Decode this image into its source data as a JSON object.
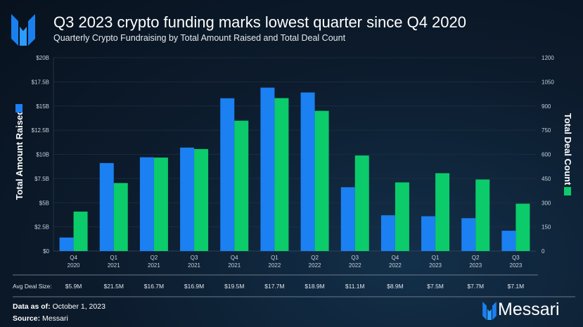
{
  "header": {
    "title": "Q3 2023 crypto funding marks lowest quarter since Q4 2020",
    "subtitle": "Quarterly Crypto Fundraising by Total Amount Raised and Total Deal Count"
  },
  "chart_data": {
    "type": "bar",
    "title": "Q3 2023 crypto funding marks lowest quarter since Q4 2020",
    "subtitle": "Quarterly Crypto Fundraising by Total Amount Raised and Total Deal Count",
    "categories": [
      [
        "Q4",
        "2020"
      ],
      [
        "Q1",
        "2021"
      ],
      [
        "Q2",
        "2021"
      ],
      [
        "Q3",
        "2021"
      ],
      [
        "Q4",
        "2021"
      ],
      [
        "Q1",
        "2022"
      ],
      [
        "Q2",
        "2022"
      ],
      [
        "Q3",
        "2022"
      ],
      [
        "Q4",
        "2022"
      ],
      [
        "Q1",
        "2023"
      ],
      [
        "Q2",
        "2023"
      ],
      [
        "Q3",
        "2023"
      ]
    ],
    "series": [
      {
        "name": "Total Amount Raised",
        "axis": "left",
        "unit": "USD billions",
        "color": "#1b80f2",
        "values": [
          1.4,
          9.1,
          9.7,
          10.7,
          15.8,
          16.9,
          16.4,
          6.6,
          3.7,
          3.6,
          3.4,
          2.1
        ]
      },
      {
        "name": "Total Deal Count",
        "axis": "right",
        "color": "#0bcb6b",
        "values": [
          245,
          422,
          580,
          633,
          809,
          949,
          870,
          593,
          426,
          483,
          444,
          294
        ]
      }
    ],
    "ylabel_left": "Total Amount Raised",
    "ylabel_right": "Total Deal Count",
    "ylim_left": [
      0,
      20
    ],
    "ylim_right": [
      0,
      1200
    ],
    "yticks_left": [
      "$0",
      "$2.5B",
      "$5B",
      "$7.5B",
      "$10B",
      "$12.5B",
      "$15B",
      "$17.5B",
      "$20B"
    ],
    "yticks_right": [
      "0",
      "150",
      "300",
      "450",
      "600",
      "750",
      "900",
      "1050",
      "1200"
    ],
    "grid": true,
    "avg_deal_size": {
      "label": "Avg Deal Size:",
      "values": [
        "$5.9M",
        "$21.5M",
        "$16.7M",
        "$16.9M",
        "$19.5M",
        "$17.7M",
        "$18.9M",
        "$11.1M",
        "$8.9M",
        "$7.5M",
        "$7.7M",
        "$7.1M"
      ]
    }
  },
  "footer": {
    "data_as_of_label": "Data as of:",
    "data_as_of": "October 1, 2023",
    "source_label": "Source:",
    "source": "Messari",
    "brand": "Messari"
  }
}
